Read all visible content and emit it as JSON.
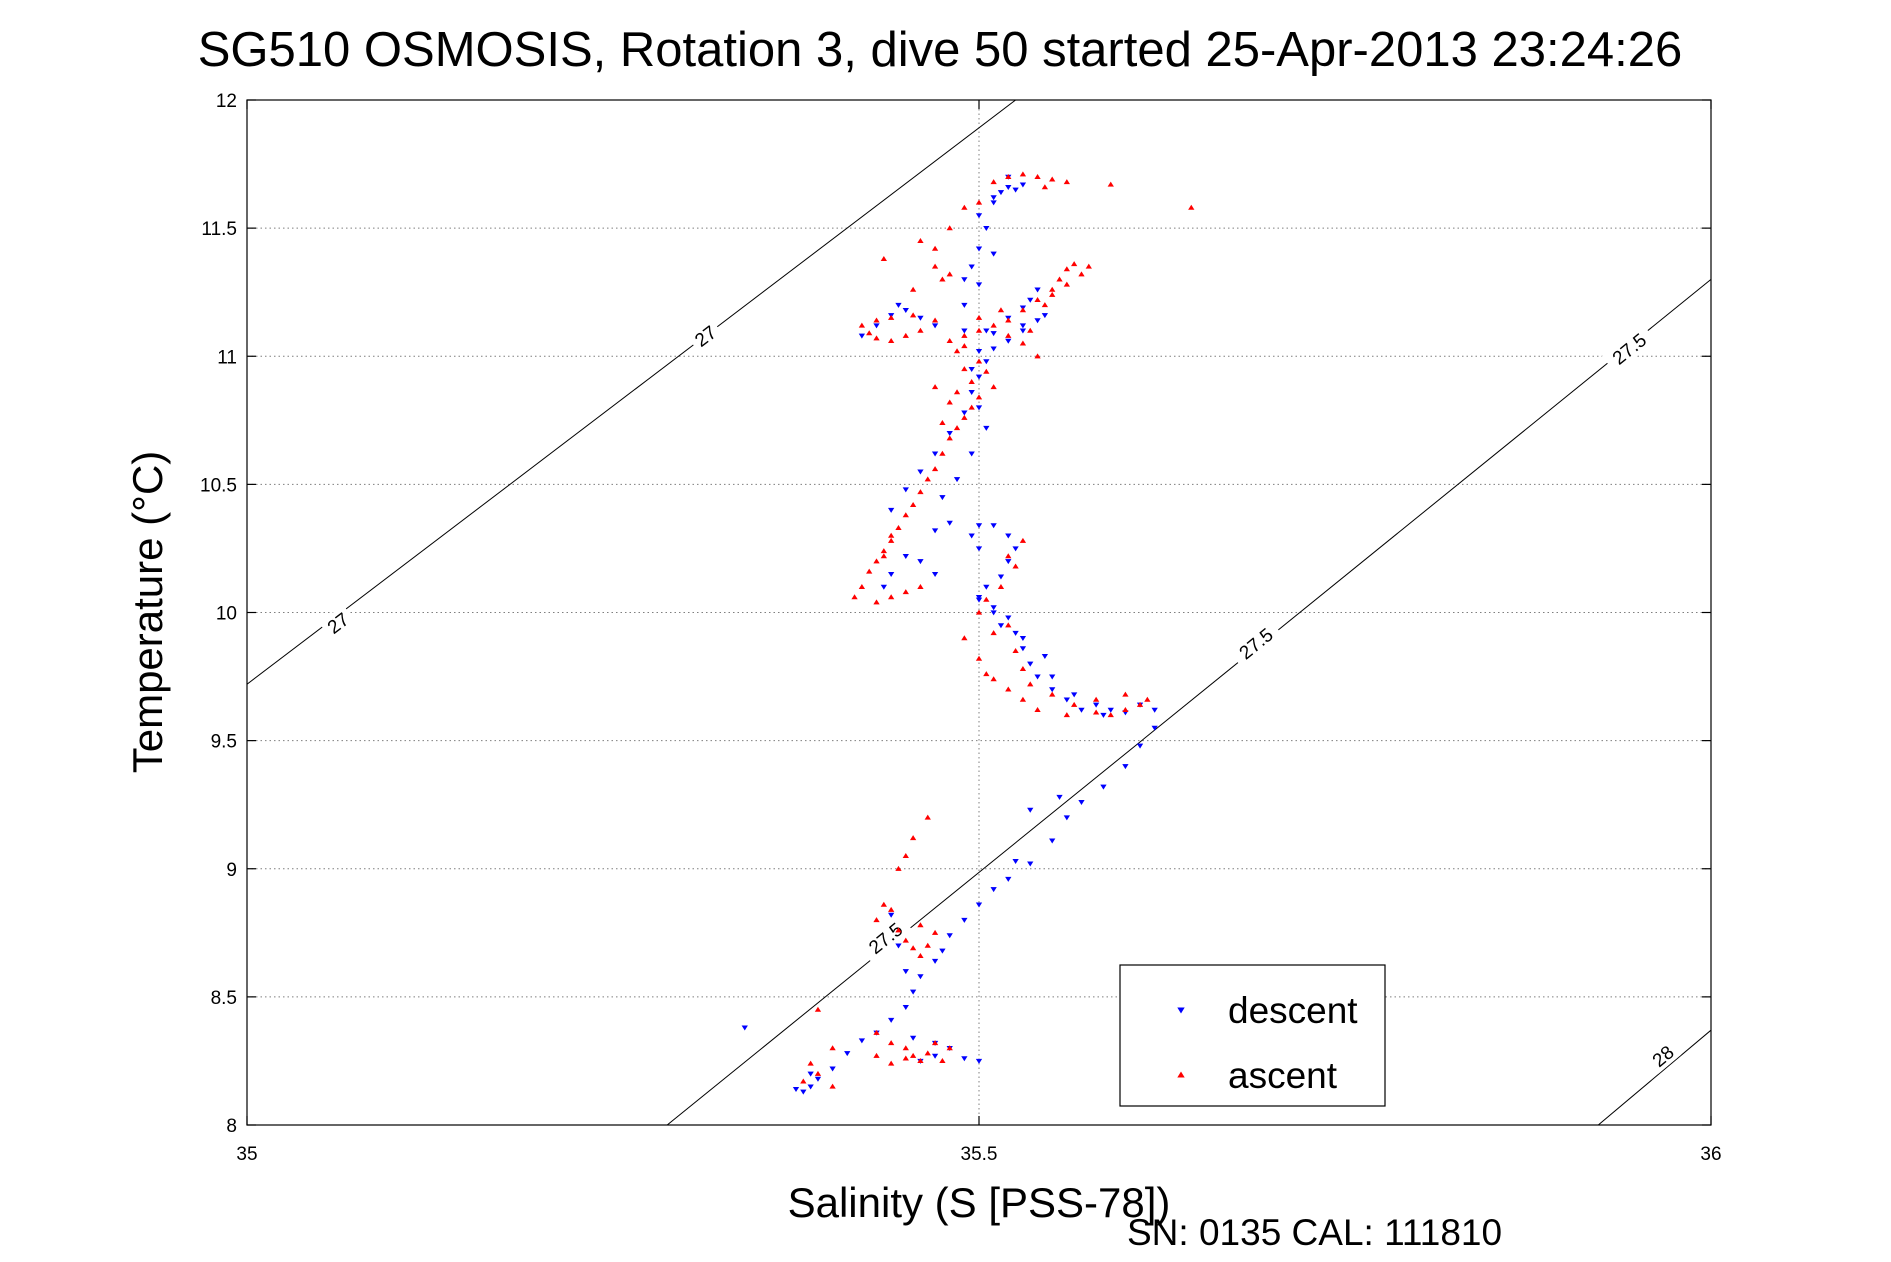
{
  "chart_data": {
    "type": "scatter",
    "title": "SG510 OSMOSIS, Rotation 3, dive 50 started 25-Apr-2013 23:24:26",
    "xlabel": "Salinity (S [PSS-78])",
    "ylabel": "Temperature (°C)",
    "xlim": [
      35,
      36
    ],
    "ylim": [
      8,
      12
    ],
    "xticks": [
      35,
      35.5,
      36
    ],
    "xtick_labels": [
      "35",
      "35.5",
      "36"
    ],
    "yticks": [
      8,
      8.5,
      9,
      9.5,
      10,
      10.5,
      11,
      11.5,
      12
    ],
    "ytick_labels": [
      "8",
      "8.5",
      "9",
      "9.5",
      "10",
      "10.5",
      "11",
      "11.5",
      "12"
    ],
    "grid": true,
    "legend_position": "bottom-right",
    "footer": "SN: 0135  CAL: 111810",
    "colors": {
      "descent": "#0000ff",
      "ascent": "#ff0000",
      "axes": "#000000",
      "grid": "#7f7f7f"
    },
    "density_contours": [
      {
        "label": "27",
        "points": [
          [
            35,
            9.72
          ],
          [
            35.525,
            12
          ]
        ],
        "label_positions": [
          [
            35.062,
            9.96
          ],
          [
            35.313,
            11.08
          ]
        ]
      },
      {
        "label": "27.5",
        "points": [
          [
            35.287,
            8
          ],
          [
            36,
            11.3
          ]
        ],
        "label_positions": [
          [
            35.436,
            8.73
          ],
          [
            35.689,
            9.88
          ],
          [
            35.944,
            11.03
          ]
        ]
      },
      {
        "label": "28",
        "points": [
          [
            35.923,
            8
          ],
          [
            36,
            8.37
          ]
        ],
        "label_positions": [
          [
            35.967,
            8.27
          ]
        ]
      }
    ],
    "series": [
      {
        "name": "descent",
        "marker": "triangle-down",
        "points": [
          [
            35.38,
            8.13
          ],
          [
            35.385,
            8.15
          ],
          [
            35.39,
            8.18
          ],
          [
            35.4,
            8.22
          ],
          [
            35.41,
            8.28
          ],
          [
            35.42,
            8.33
          ],
          [
            35.43,
            8.36
          ],
          [
            35.44,
            8.41
          ],
          [
            35.45,
            8.46
          ],
          [
            35.455,
            8.52
          ],
          [
            35.46,
            8.58
          ],
          [
            35.47,
            8.64
          ],
          [
            35.475,
            8.68
          ],
          [
            35.48,
            8.74
          ],
          [
            35.49,
            8.8
          ],
          [
            35.5,
            8.86
          ],
          [
            35.51,
            8.92
          ],
          [
            35.52,
            8.96
          ],
          [
            35.535,
            9.02
          ],
          [
            35.55,
            9.11
          ],
          [
            35.56,
            9.2
          ],
          [
            35.57,
            9.26
          ],
          [
            35.585,
            9.32
          ],
          [
            35.6,
            9.4
          ],
          [
            35.61,
            9.48
          ],
          [
            35.62,
            9.55
          ],
          [
            35.62,
            9.62
          ],
          [
            35.61,
            9.64
          ],
          [
            35.6,
            9.61
          ],
          [
            35.585,
            9.6
          ],
          [
            35.57,
            9.62
          ],
          [
            35.56,
            9.66
          ],
          [
            35.55,
            9.7
          ],
          [
            35.54,
            9.75
          ],
          [
            35.535,
            9.8
          ],
          [
            35.53,
            9.86
          ],
          [
            35.525,
            9.92
          ],
          [
            35.52,
            9.98
          ],
          [
            35.51,
            10.02
          ],
          [
            35.5,
            10.06
          ],
          [
            35.505,
            10.1
          ],
          [
            35.515,
            10.14
          ],
          [
            35.52,
            10.2
          ],
          [
            35.525,
            10.25
          ],
          [
            35.52,
            10.3
          ],
          [
            35.51,
            10.34
          ],
          [
            35.5,
            10.34
          ],
          [
            35.495,
            10.3
          ],
          [
            35.5,
            10.25
          ],
          [
            35.47,
            10.32
          ],
          [
            35.45,
            10.22
          ],
          [
            35.44,
            10.15
          ],
          [
            35.435,
            10.1
          ],
          [
            35.44,
            10.4
          ],
          [
            35.45,
            10.48
          ],
          [
            35.46,
            10.55
          ],
          [
            35.47,
            10.62
          ],
          [
            35.48,
            10.7
          ],
          [
            35.49,
            10.78
          ],
          [
            35.495,
            10.86
          ],
          [
            35.5,
            10.92
          ],
          [
            35.505,
            10.98
          ],
          [
            35.51,
            11.03
          ],
          [
            35.52,
            11.06
          ],
          [
            35.53,
            11.1
          ],
          [
            35.54,
            11.14
          ],
          [
            35.545,
            11.16
          ],
          [
            35.53,
            11.12
          ],
          [
            35.51,
            11.09
          ],
          [
            35.49,
            11.1
          ],
          [
            35.47,
            11.12
          ],
          [
            35.46,
            11.15
          ],
          [
            35.45,
            11.18
          ],
          [
            35.445,
            11.2
          ],
          [
            35.44,
            11.16
          ],
          [
            35.43,
            11.12
          ],
          [
            35.42,
            11.08
          ],
          [
            35.49,
            11.3
          ],
          [
            35.5,
            11.42
          ],
          [
            35.505,
            11.5
          ],
          [
            35.51,
            11.6
          ],
          [
            35.515,
            11.64
          ],
          [
            35.52,
            11.66
          ],
          [
            35.53,
            11.67
          ],
          [
            35.52,
            11.7
          ],
          [
            35.51,
            11.62
          ],
          [
            35.46,
            8.25
          ],
          [
            35.47,
            8.27
          ],
          [
            35.48,
            8.3
          ],
          [
            35.49,
            8.26
          ],
          [
            35.5,
            8.25
          ],
          [
            35.47,
            8.32
          ],
          [
            35.455,
            8.34
          ],
          [
            35.45,
            8.6
          ],
          [
            35.445,
            8.7
          ],
          [
            35.44,
            8.82
          ],
          [
            35.525,
            9.03
          ],
          [
            35.535,
            9.23
          ],
          [
            35.555,
            9.28
          ],
          [
            35.34,
            8.38
          ],
          [
            35.375,
            8.14
          ],
          [
            35.385,
            8.2
          ],
          [
            35.47,
            10.15
          ],
          [
            35.46,
            10.2
          ],
          [
            35.48,
            10.35
          ],
          [
            35.475,
            10.45
          ],
          [
            35.485,
            10.52
          ],
          [
            35.495,
            10.62
          ],
          [
            35.505,
            10.72
          ],
          [
            35.5,
            10.8
          ],
          [
            35.495,
            10.95
          ],
          [
            35.5,
            11.02
          ],
          [
            35.505,
            11.1
          ],
          [
            35.52,
            11.15
          ],
          [
            35.53,
            11.19
          ],
          [
            35.535,
            11.22
          ],
          [
            35.54,
            11.26
          ],
          [
            35.49,
            11.2
          ],
          [
            35.5,
            11.28
          ],
          [
            35.495,
            11.35
          ],
          [
            35.51,
            11.4
          ],
          [
            35.5,
            11.55
          ],
          [
            35.525,
            11.65
          ],
          [
            35.5,
            10.05
          ],
          [
            35.51,
            10.0
          ],
          [
            35.515,
            9.95
          ],
          [
            35.53,
            9.9
          ],
          [
            35.545,
            9.83
          ],
          [
            35.55,
            9.75
          ],
          [
            35.565,
            9.68
          ],
          [
            35.58,
            9.64
          ],
          [
            35.59,
            9.62
          ]
        ]
      },
      {
        "name": "ascent",
        "marker": "triangle-up",
        "points": [
          [
            35.38,
            8.17
          ],
          [
            35.39,
            8.2
          ],
          [
            35.385,
            8.24
          ],
          [
            35.4,
            8.15
          ],
          [
            35.39,
            8.45
          ],
          [
            35.4,
            8.3
          ],
          [
            35.43,
            8.36
          ],
          [
            35.44,
            8.32
          ],
          [
            35.45,
            8.3
          ],
          [
            35.455,
            8.27
          ],
          [
            35.46,
            8.25
          ],
          [
            35.465,
            8.28
          ],
          [
            35.47,
            8.32
          ],
          [
            35.475,
            8.25
          ],
          [
            35.48,
            8.3
          ],
          [
            35.43,
            8.27
          ],
          [
            35.44,
            8.24
          ],
          [
            35.45,
            8.26
          ],
          [
            35.43,
            8.8
          ],
          [
            35.435,
            8.86
          ],
          [
            35.44,
            8.84
          ],
          [
            35.445,
            8.76
          ],
          [
            35.45,
            8.72
          ],
          [
            35.455,
            8.69
          ],
          [
            35.46,
            8.66
          ],
          [
            35.465,
            8.7
          ],
          [
            35.47,
            8.75
          ],
          [
            35.46,
            8.78
          ],
          [
            35.445,
            9.0
          ],
          [
            35.45,
            9.05
          ],
          [
            35.455,
            9.12
          ],
          [
            35.465,
            9.2
          ],
          [
            35.415,
            10.06
          ],
          [
            35.42,
            10.1
          ],
          [
            35.425,
            10.16
          ],
          [
            35.43,
            10.2
          ],
          [
            35.435,
            10.24
          ],
          [
            35.44,
            10.28
          ],
          [
            35.445,
            10.33
          ],
          [
            35.45,
            10.38
          ],
          [
            35.455,
            10.42
          ],
          [
            35.46,
            10.47
          ],
          [
            35.465,
            10.52
          ],
          [
            35.47,
            10.56
          ],
          [
            35.475,
            10.62
          ],
          [
            35.48,
            10.68
          ],
          [
            35.485,
            10.72
          ],
          [
            35.49,
            10.76
          ],
          [
            35.495,
            10.8
          ],
          [
            35.5,
            10.84
          ],
          [
            35.495,
            10.9
          ],
          [
            35.49,
            10.95
          ],
          [
            35.485,
            11.02
          ],
          [
            35.49,
            11.08
          ],
          [
            35.5,
            11.1
          ],
          [
            35.51,
            11.12
          ],
          [
            35.52,
            11.14
          ],
          [
            35.53,
            11.18
          ],
          [
            35.54,
            11.22
          ],
          [
            35.55,
            11.26
          ],
          [
            35.555,
            11.3
          ],
          [
            35.56,
            11.34
          ],
          [
            35.565,
            11.36
          ],
          [
            35.46,
            11.1
          ],
          [
            35.45,
            11.08
          ],
          [
            35.44,
            11.06
          ],
          [
            35.43,
            11.07
          ],
          [
            35.425,
            11.09
          ],
          [
            35.42,
            11.12
          ],
          [
            35.43,
            11.14
          ],
          [
            35.44,
            11.15
          ],
          [
            35.455,
            11.16
          ],
          [
            35.47,
            11.14
          ],
          [
            35.48,
            11.06
          ],
          [
            35.49,
            11.04
          ],
          [
            35.5,
            10.98
          ],
          [
            35.505,
            10.94
          ],
          [
            35.51,
            10.88
          ],
          [
            35.47,
            10.88
          ],
          [
            35.48,
            10.82
          ],
          [
            35.475,
            10.74
          ],
          [
            35.485,
            10.86
          ],
          [
            35.44,
            10.06
          ],
          [
            35.43,
            10.04
          ],
          [
            35.45,
            10.08
          ],
          [
            35.46,
            10.1
          ],
          [
            35.44,
            10.3
          ],
          [
            35.435,
            10.22
          ],
          [
            35.52,
            10.22
          ],
          [
            35.525,
            10.18
          ],
          [
            35.53,
            10.28
          ],
          [
            35.515,
            10.1
          ],
          [
            35.505,
            10.05
          ],
          [
            35.5,
            10.0
          ],
          [
            35.51,
            9.92
          ],
          [
            35.52,
            9.95
          ],
          [
            35.525,
            9.85
          ],
          [
            35.53,
            9.78
          ],
          [
            35.535,
            9.72
          ],
          [
            35.55,
            9.68
          ],
          [
            35.565,
            9.64
          ],
          [
            35.58,
            9.61
          ],
          [
            35.59,
            9.6
          ],
          [
            35.6,
            9.62
          ],
          [
            35.61,
            9.64
          ],
          [
            35.615,
            9.66
          ],
          [
            35.6,
            9.68
          ],
          [
            35.58,
            9.66
          ],
          [
            35.56,
            9.6
          ],
          [
            35.54,
            9.62
          ],
          [
            35.53,
            9.66
          ],
          [
            35.52,
            9.7
          ],
          [
            35.51,
            9.74
          ],
          [
            35.505,
            9.76
          ],
          [
            35.5,
            9.82
          ],
          [
            35.49,
            9.9
          ],
          [
            35.48,
            11.32
          ],
          [
            35.48,
            11.5
          ],
          [
            35.49,
            11.58
          ],
          [
            35.5,
            11.6
          ],
          [
            35.51,
            11.68
          ],
          [
            35.52,
            11.7
          ],
          [
            35.53,
            11.71
          ],
          [
            35.54,
            11.7
          ],
          [
            35.55,
            11.69
          ],
          [
            35.56,
            11.68
          ],
          [
            35.545,
            11.66
          ],
          [
            35.59,
            11.67
          ],
          [
            35.645,
            11.58
          ],
          [
            35.455,
            11.26
          ],
          [
            35.475,
            11.3
          ],
          [
            35.47,
            11.42
          ],
          [
            35.435,
            11.38
          ],
          [
            35.46,
            11.45
          ],
          [
            35.47,
            11.35
          ],
          [
            35.5,
            11.15
          ],
          [
            35.515,
            11.18
          ],
          [
            35.52,
            11.08
          ],
          [
            35.53,
            11.05
          ],
          [
            35.54,
            11.0
          ],
          [
            35.535,
            11.1
          ],
          [
            35.545,
            11.2
          ],
          [
            35.55,
            11.24
          ],
          [
            35.56,
            11.28
          ],
          [
            35.57,
            11.32
          ],
          [
            35.575,
            11.35
          ]
        ]
      }
    ]
  }
}
